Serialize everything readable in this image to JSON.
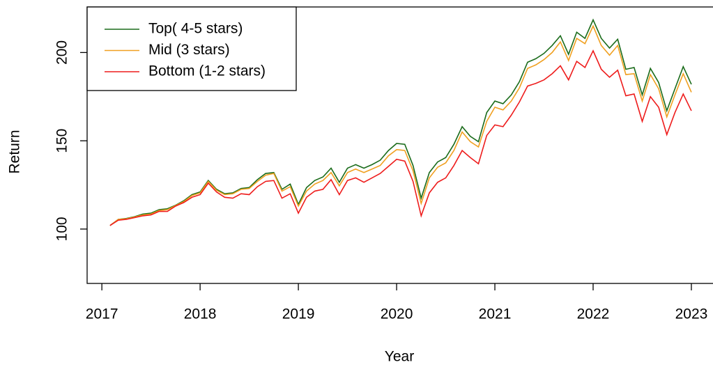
{
  "chart_data": {
    "type": "line",
    "x_label": "Year",
    "y_label": "Return",
    "x": [
      2017.083,
      2017.167,
      2017.25,
      2017.333,
      2017.417,
      2017.5,
      2017.583,
      2017.667,
      2017.75,
      2017.833,
      2017.917,
      2018,
      2018.083,
      2018.167,
      2018.25,
      2018.333,
      2018.417,
      2018.5,
      2018.583,
      2018.667,
      2018.75,
      2018.833,
      2018.917,
      2019,
      2019.083,
      2019.167,
      2019.25,
      2019.333,
      2019.417,
      2019.5,
      2019.583,
      2019.667,
      2019.75,
      2019.833,
      2019.917,
      2020,
      2020.083,
      2020.167,
      2020.25,
      2020.333,
      2020.417,
      2020.5,
      2020.583,
      2020.667,
      2020.75,
      2020.833,
      2020.917,
      2021,
      2021.083,
      2021.167,
      2021.25,
      2021.333,
      2021.417,
      2021.5,
      2021.583,
      2021.667,
      2021.75,
      2021.833,
      2021.917,
      2022,
      2022.083,
      2022.167,
      2022.25,
      2022.333,
      2022.417,
      2022.5,
      2022.583,
      2022.667,
      2022.75,
      2022.833,
      2022.917,
      2023
    ],
    "series": [
      {
        "name": "Top( 4-5 stars)",
        "color": "#1a6b1a",
        "values": [
          102,
          105.5,
          106,
          107,
          108.5,
          109,
          111,
          111.5,
          113.5,
          116,
          119.5,
          121,
          127.5,
          122.5,
          120,
          120.5,
          123,
          123.5,
          128,
          131.5,
          132,
          122.5,
          125.5,
          114,
          123.5,
          127.5,
          129.5,
          134.5,
          126.5,
          134.5,
          136.5,
          134.5,
          136.5,
          139,
          144.5,
          148.5,
          148,
          136,
          117.5,
          132,
          138,
          140.5,
          148,
          158,
          152.5,
          149.5,
          166,
          172.5,
          171,
          176,
          183.5,
          194.5,
          196.5,
          199.5,
          204,
          209.5,
          199,
          211.5,
          208,
          218.5,
          208,
          202.5,
          207.5,
          190.5,
          191.5,
          176,
          191,
          183,
          167,
          179.5,
          192,
          182
        ]
      },
      {
        "name": "Mid (3 stars)",
        "color": "#f0a020",
        "values": [
          102,
          105.5,
          105.8,
          106.8,
          108,
          108.5,
          110.5,
          111,
          113.3,
          115.5,
          119,
          120.5,
          127,
          122,
          119.5,
          120,
          122.5,
          123,
          127,
          130.5,
          131.5,
          121.5,
          124,
          113,
          121.5,
          125.5,
          127.5,
          132,
          124.5,
          132,
          134,
          132,
          134,
          136,
          141.5,
          145,
          144.5,
          133,
          114.5,
          129,
          135,
          137.5,
          144.5,
          155,
          149.5,
          146.5,
          161,
          169,
          167.5,
          172.5,
          180,
          191,
          193,
          196,
          200,
          206,
          195.5,
          208,
          205,
          215,
          204,
          198.5,
          204,
          187.5,
          188,
          172.5,
          187.5,
          179.5,
          163.5,
          176,
          188,
          177.5
        ]
      },
      {
        "name": "Bottom (1-2 stars)",
        "color": "#ee1c1c",
        "values": [
          102,
          105,
          105.5,
          106.5,
          107.5,
          108,
          110,
          110,
          113,
          115,
          118,
          119.5,
          126,
          121,
          118,
          117.5,
          120,
          119.5,
          124,
          127,
          127.5,
          117.5,
          120,
          109,
          118,
          121.5,
          122.5,
          128,
          119.5,
          127.5,
          129,
          126.5,
          129,
          131.5,
          135.5,
          139.5,
          138.5,
          127,
          107.5,
          120.5,
          126.5,
          129,
          136,
          144.5,
          140.5,
          137,
          153,
          159,
          158,
          164.5,
          172,
          181,
          182.5,
          184.5,
          188,
          192.5,
          184.5,
          195,
          191.5,
          201,
          190.5,
          186,
          190,
          175.5,
          176.5,
          161,
          175,
          169,
          153.5,
          166,
          176.5,
          167
        ]
      }
    ],
    "xlim": [
      2016.85,
      2023.24
    ],
    "xticks": [
      2017,
      2018,
      2019,
      2020,
      2021,
      2022,
      2023
    ],
    "ylim": [
      69.2,
      225.8
    ],
    "yticks": [
      100,
      150,
      200
    ],
    "legend": "top-left"
  }
}
